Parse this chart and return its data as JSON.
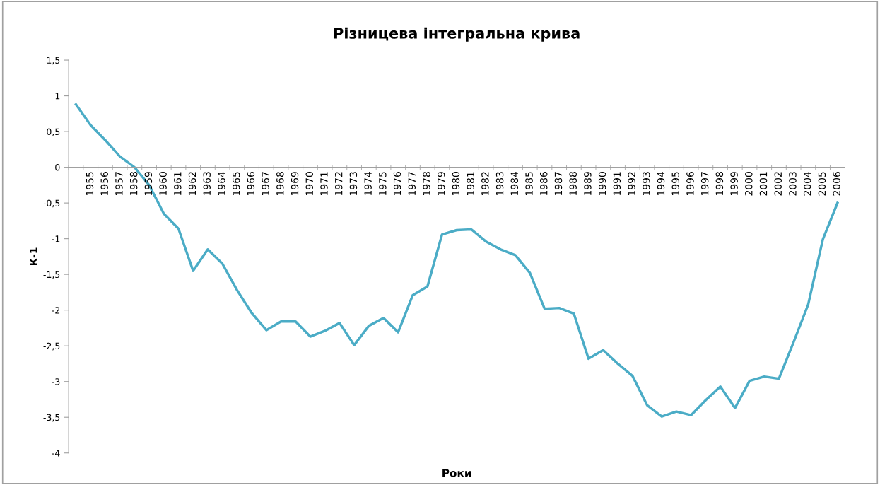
{
  "chart_data": {
    "type": "line",
    "title": "Різницева інтегральна крива",
    "xlabel": "Роки",
    "ylabel": "К-1",
    "categories": [
      null,
      "1955",
      "1956",
      "1957",
      "1958",
      "1959",
      "1960",
      "1961",
      "1962",
      "1963",
      "1964",
      "1965",
      "1966",
      "1967",
      "1968",
      "1969",
      "1970",
      "1971",
      "1972",
      "1973",
      "1974",
      "1975",
      "1976",
      "1977",
      "1978",
      "1979",
      "1980",
      "1981",
      "1982",
      "1983",
      "1984",
      "1985",
      "1986",
      "1987",
      "1988",
      "1989",
      "1990",
      "1991",
      "1992",
      "1993",
      "1994",
      "1995",
      "1996",
      "1997",
      "1998",
      "1999",
      "2000",
      "2001",
      "2002",
      "2003",
      "2004",
      "2005",
      "2006"
    ],
    "series": [
      {
        "color": "#4bacc6",
        "values": [
          0.88,
          0.59,
          0.38,
          0.15,
          0.0,
          -0.25,
          -0.65,
          -0.86,
          -1.45,
          -1.15,
          -1.35,
          -1.72,
          -2.04,
          -2.28,
          -2.16,
          -2.16,
          -2.37,
          -2.29,
          -2.18,
          -2.49,
          -2.22,
          -2.11,
          -2.31,
          -1.79,
          -1.67,
          -0.94,
          -0.88,
          -0.87,
          -1.04,
          -1.15,
          -1.23,
          -1.48,
          -1.98,
          -1.97,
          -2.05,
          -2.68,
          -2.56,
          -2.75,
          -2.92,
          -3.33,
          -3.49,
          -3.42,
          -3.47,
          -3.26,
          -3.07,
          -3.37,
          -2.99,
          -2.93,
          -2.96,
          -2.45,
          -1.92,
          -1.01,
          -0.5
        ]
      }
    ],
    "ylim": [
      -4,
      1.5
    ],
    "yticks": [
      -4,
      {
        "value": -3.5,
        "label": "-3,5"
      },
      -3,
      {
        "value": -2.5,
        "label": "-2,5"
      },
      -2,
      {
        "value": -1.5,
        "label": "-1,5"
      },
      -1,
      {
        "value": -0.5,
        "label": "-0,5"
      },
      0,
      {
        "value": 0.5,
        "label": "0,5"
      },
      1,
      {
        "value": 1.5,
        "label": "1,5"
      }
    ],
    "grid": false,
    "marker": "none",
    "line_style": "solid"
  }
}
